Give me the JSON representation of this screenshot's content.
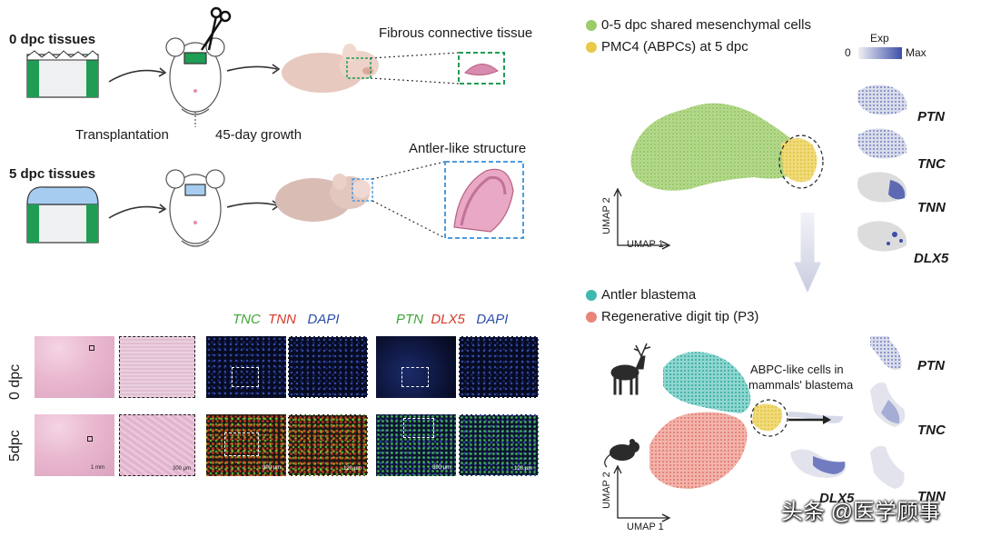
{
  "top_left": {
    "label_0dpc_tissues": "0 dpc tissues",
    "label_5dpc_tissues": "5 dpc tissues",
    "label_transplantation": "Transplantation",
    "label_growth": "45-day growth",
    "label_fibrous": "Fibrous connective tissue",
    "label_antler_like": "Antler-like structure"
  },
  "bottom_left": {
    "row_0dpc": "0 dpc",
    "row_5dpc": "5dpc",
    "stain1": {
      "a": "TNC",
      "b": "TNN",
      "c": "DAPI"
    },
    "stain2": {
      "a": "PTN",
      "b": "DLX5",
      "c": "DAPI"
    },
    "scale_1mm": "1 mm",
    "scale_300": "300 μm",
    "scale_120": "120 μm"
  },
  "top_right": {
    "legend1": "0-5 dpc shared mesenchymal cells",
    "legend2": "PMC4 (ABPCs) at 5 dpc",
    "exp_title": "Exp",
    "exp_min": "0",
    "exp_max": "Max",
    "axis_x": "UMAP 1",
    "axis_y": "UMAP 2",
    "genes": [
      "PTN",
      "TNC",
      "TNN",
      "DLX5"
    ]
  },
  "bottom_right": {
    "legend1": "Antler blastema",
    "legend2": "Regenerative digit tip (P3)",
    "annot_line1": "ABPC-like cells in",
    "annot_line2": "mammals' blastema",
    "axis_x": "UMAP 1",
    "axis_y": "UMAP 2",
    "genes": [
      "PTN",
      "TNC",
      "DLX5",
      "TNN"
    ]
  },
  "watermark": "头条 @医学顾事",
  "colors": {
    "green_cluster": "#9ccc6a",
    "yellow_cluster": "#e8c94a",
    "teal_cluster": "#3fb8b0",
    "salmon_cluster": "#e8857a",
    "exp_high": "#3d4ea8",
    "tissue_green": "#1f9d55",
    "tissue_blue": "#a6cdf0",
    "stain_green": "#3fa535",
    "stain_red": "#d93a2b",
    "stain_blue": "#2e4fa8"
  }
}
